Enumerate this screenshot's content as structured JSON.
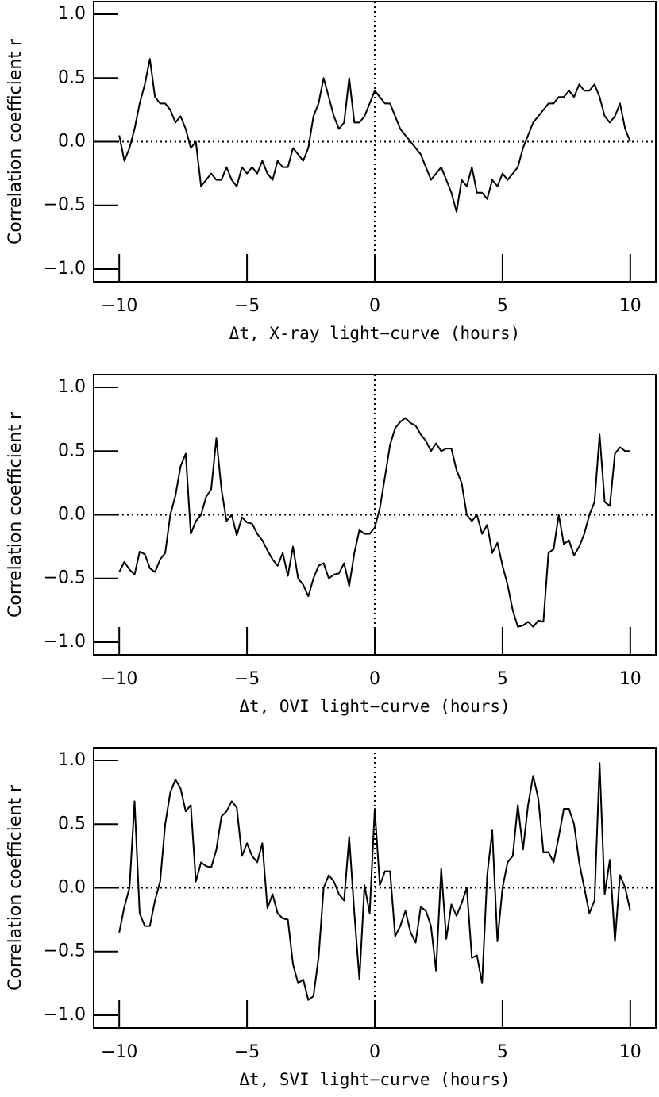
{
  "chart_data": [
    {
      "type": "line",
      "x_label": "Δt, X-ray light−curve (hours)",
      "y_label": "Correlation coefficient r",
      "x": [
        -10,
        -9.8,
        -9.6,
        -9.4,
        -9.2,
        -9,
        -8.8,
        -8.6,
        -8.4,
        -8.2,
        -8,
        -7.8,
        -7.6,
        -7.4,
        -7.2,
        -7,
        -6.8,
        -6.6,
        -6.4,
        -6.2,
        -6,
        -5.8,
        -5.6,
        -5.4,
        -5.2,
        -5,
        -4.8,
        -4.6,
        -4.4,
        -4.2,
        -4,
        -3.8,
        -3.6,
        -3.4,
        -3.2,
        -3,
        -2.8,
        -2.6,
        -2.4,
        -2.2,
        -2,
        -1.8,
        -1.6,
        -1.4,
        -1.2,
        -1,
        -0.8,
        -0.6,
        -0.4,
        -0.2,
        0,
        0.2,
        0.4,
        0.6,
        0.8,
        1,
        1.2,
        1.4,
        1.6,
        1.8,
        2,
        2.2,
        2.4,
        2.6,
        2.8,
        3,
        3.2,
        3.4,
        3.6,
        3.8,
        4,
        4.2,
        4.4,
        4.6,
        4.8,
        5,
        5.2,
        5.4,
        5.6,
        5.8,
        6,
        6.2,
        6.4,
        6.6,
        6.8,
        7,
        7.2,
        7.4,
        7.6,
        7.8,
        8,
        8.2,
        8.4,
        8.6,
        8.8,
        9,
        9.2,
        9.4,
        9.6,
        9.8,
        10
      ],
      "series": [
        {
          "color": "#000000",
          "values": [
            0.05,
            -0.15,
            -0.05,
            0.1,
            0.3,
            0.45,
            0.65,
            0.35,
            0.3,
            0.3,
            0.25,
            0.15,
            0.2,
            0.1,
            -0.05,
            0,
            -0.35,
            -0.3,
            -0.25,
            -0.3,
            -0.3,
            -0.2,
            -0.3,
            -0.35,
            -0.2,
            -0.25,
            -0.2,
            -0.25,
            -0.15,
            -0.25,
            -0.3,
            -0.15,
            -0.2,
            -0.2,
            -0.05,
            -0.1,
            -0.15,
            -0.05,
            0.2,
            0.3,
            0.5,
            0.35,
            0.2,
            0.1,
            0.15,
            0.5,
            0.15,
            0.15,
            0.2,
            0.3,
            0.4,
            0.35,
            0.3,
            0.3,
            0.2,
            0.1,
            0.05,
            0,
            -0.05,
            -0.1,
            -0.2,
            -0.3,
            -0.25,
            -0.2,
            -0.3,
            -0.4,
            -0.55,
            -0.3,
            -0.35,
            -0.2,
            -0.4,
            -0.4,
            -0.45,
            -0.3,
            -0.35,
            -0.25,
            -0.3,
            -0.25,
            -0.2,
            -0.05,
            0.05,
            0.15,
            0.2,
            0.25,
            0.3,
            0.3,
            0.35,
            0.35,
            0.4,
            0.35,
            0.45,
            0.4,
            0.4,
            0.45,
            0.35,
            0.2,
            0.15,
            0.2,
            0.3,
            0.1,
            0
          ]
        }
      ],
      "xlim": [
        -11,
        11
      ],
      "ylim": [
        -1.1,
        1.1
      ],
      "xticks": [
        {
          "value": -10,
          "label": "−10"
        },
        {
          "value": -5,
          "label": "−5"
        },
        0,
        5,
        10
      ],
      "yticks": [
        {
          "value": -1,
          "label": "−1.0"
        },
        {
          "value": -0.5,
          "label": "−0.5"
        },
        {
          "value": 0,
          "label": "0.0"
        },
        0.5,
        {
          "value": 1,
          "label": "1.0"
        }
      ],
      "hline": 0,
      "vline": 0
    },
    {
      "type": "line",
      "x_label": "Δt, OVI light−curve (hours)",
      "y_label": "Correlation coefficient r",
      "x": [
        -10,
        -9.8,
        -9.6,
        -9.4,
        -9.2,
        -9,
        -8.8,
        -8.6,
        -8.4,
        -8.2,
        -8,
        -7.8,
        -7.6,
        -7.4,
        -7.2,
        -7,
        -6.8,
        -6.6,
        -6.4,
        -6.2,
        -6,
        -5.8,
        -5.6,
        -5.4,
        -5.2,
        -5,
        -4.8,
        -4.6,
        -4.4,
        -4.2,
        -4,
        -3.8,
        -3.6,
        -3.4,
        -3.2,
        -3,
        -2.8,
        -2.6,
        -2.4,
        -2.2,
        -2,
        -1.8,
        -1.6,
        -1.4,
        -1.2,
        -1,
        -0.8,
        -0.6,
        -0.4,
        -0.2,
        0,
        0.2,
        0.4,
        0.6,
        0.8,
        1,
        1.2,
        1.4,
        1.6,
        1.8,
        2,
        2.2,
        2.4,
        2.6,
        2.8,
        3,
        3.2,
        3.4,
        3.6,
        3.8,
        4,
        4.2,
        4.4,
        4.6,
        4.8,
        5,
        5.2,
        5.4,
        5.6,
        5.8,
        6,
        6.2,
        6.4,
        6.6,
        6.8,
        7,
        7.2,
        7.4,
        7.6,
        7.8,
        8,
        8.2,
        8.4,
        8.6,
        8.8,
        9,
        9.2,
        9.4,
        9.6,
        9.8,
        10
      ],
      "series": [
        {
          "color": "#000000",
          "values": [
            -0.45,
            -0.37,
            -0.43,
            -0.47,
            -0.29,
            -0.31,
            -0.42,
            -0.45,
            -0.35,
            -0.3,
            0,
            0.15,
            0.38,
            0.48,
            -0.15,
            -0.05,
            0,
            0.14,
            0.2,
            0.6,
            0.2,
            -0.05,
            0,
            -0.16,
            -0.02,
            -0.06,
            -0.07,
            -0.15,
            -0.2,
            -0.28,
            -0.35,
            -0.4,
            -0.3,
            -0.48,
            -0.25,
            -0.5,
            -0.55,
            -0.64,
            -0.5,
            -0.4,
            -0.38,
            -0.5,
            -0.47,
            -0.46,
            -0.38,
            -0.56,
            -0.3,
            -0.12,
            -0.15,
            -0.15,
            -0.1,
            0.05,
            0.3,
            0.55,
            0.68,
            0.73,
            0.76,
            0.72,
            0.7,
            0.63,
            0.58,
            0.5,
            0.56,
            0.5,
            0.52,
            0.52,
            0.35,
            0.25,
            0,
            -0.05,
            0,
            -0.15,
            -0.08,
            -0.3,
            -0.22,
            -0.4,
            -0.55,
            -0.75,
            -0.88,
            -0.87,
            -0.84,
            -0.88,
            -0.83,
            -0.84,
            -0.3,
            -0.27,
            0,
            -0.23,
            -0.2,
            -0.32,
            -0.25,
            -0.15,
            0,
            0.1,
            0.63,
            0.1,
            0.07,
            0.48,
            0.53,
            0.5,
            0.5
          ]
        }
      ],
      "xlim": [
        -11,
        11
      ],
      "ylim": [
        -1.1,
        1.1
      ],
      "xticks": [
        {
          "value": -10,
          "label": "−10"
        },
        {
          "value": -5,
          "label": "−5"
        },
        0,
        5,
        10
      ],
      "yticks": [
        {
          "value": -1,
          "label": "−1.0"
        },
        {
          "value": -0.5,
          "label": "−0.5"
        },
        {
          "value": 0,
          "label": "0.0"
        },
        0.5,
        {
          "value": 1,
          "label": "1.0"
        }
      ],
      "hline": 0,
      "vline": 0
    },
    {
      "type": "line",
      "x_label": "Δt, SVI light−curve (hours)",
      "y_label": "Correlation coefficient r",
      "x": [
        -10,
        -9.8,
        -9.6,
        -9.4,
        -9.2,
        -9,
        -8.8,
        -8.6,
        -8.4,
        -8.2,
        -8,
        -7.8,
        -7.6,
        -7.4,
        -7.2,
        -7,
        -6.8,
        -6.6,
        -6.4,
        -6.2,
        -6,
        -5.8,
        -5.6,
        -5.4,
        -5.2,
        -5,
        -4.8,
        -4.6,
        -4.4,
        -4.2,
        -4,
        -3.8,
        -3.6,
        -3.4,
        -3.2,
        -3,
        -2.8,
        -2.6,
        -2.4,
        -2.2,
        -2,
        -1.8,
        -1.6,
        -1.4,
        -1.2,
        -1,
        -0.8,
        -0.6,
        -0.4,
        -0.2,
        0,
        0.2,
        0.4,
        0.6,
        0.8,
        1,
        1.2,
        1.4,
        1.6,
        1.8,
        2,
        2.2,
        2.4,
        2.6,
        2.8,
        3,
        3.2,
        3.4,
        3.6,
        3.8,
        4,
        4.2,
        4.4,
        4.6,
        4.8,
        5,
        5.2,
        5.4,
        5.6,
        5.8,
        6,
        6.2,
        6.4,
        6.6,
        6.8,
        7,
        7.2,
        7.4,
        7.6,
        7.8,
        8,
        8.2,
        8.4,
        8.6,
        8.8,
        9,
        9.2,
        9.4,
        9.6,
        9.8,
        10
      ],
      "series": [
        {
          "color": "#000000",
          "values": [
            -0.35,
            -0.15,
            0,
            0.68,
            -0.2,
            -0.3,
            -0.3,
            -0.1,
            0.05,
            0.5,
            0.75,
            0.85,
            0.78,
            0.6,
            0.65,
            0.05,
            0.2,
            0.17,
            0.16,
            0.3,
            0.56,
            0.6,
            0.68,
            0.63,
            0.25,
            0.35,
            0.25,
            0.2,
            0.35,
            -0.16,
            -0.05,
            -0.2,
            -0.24,
            -0.25,
            -0.6,
            -0.75,
            -0.72,
            -0.88,
            -0.85,
            -0.55,
            0,
            0.1,
            0.05,
            -0.05,
            -0.1,
            0.4,
            -0.2,
            -0.72,
            0.02,
            -0.2,
            0.62,
            0.02,
            0.13,
            0.13,
            -0.38,
            -0.3,
            -0.18,
            -0.35,
            -0.43,
            -0.15,
            -0.18,
            -0.3,
            -0.65,
            0.15,
            -0.4,
            -0.13,
            -0.22,
            -0.12,
            0,
            -0.55,
            -0.53,
            -0.75,
            0.1,
            0.45,
            -0.42,
            0,
            0.2,
            0.25,
            0.65,
            0.3,
            0.65,
            0.88,
            0.7,
            0.28,
            0.28,
            0.2,
            0.4,
            0.62,
            0.62,
            0.5,
            0.2,
            0,
            -0.2,
            -0.1,
            0.98,
            -0.05,
            0.22,
            -0.42,
            0.1,
            0,
            -0.18
          ]
        }
      ],
      "xlim": [
        -11,
        11
      ],
      "ylim": [
        -1.1,
        1.1
      ],
      "xticks": [
        {
          "value": -10,
          "label": "−10"
        },
        {
          "value": -5,
          "label": "−5"
        },
        0,
        5,
        10
      ],
      "yticks": [
        {
          "value": -1,
          "label": "−1.0"
        },
        {
          "value": -0.5,
          "label": "−0.5"
        },
        {
          "value": 0,
          "label": "0.0"
        },
        0.5,
        {
          "value": 1,
          "label": "1.0"
        }
      ],
      "hline": 0,
      "vline": 0
    }
  ]
}
